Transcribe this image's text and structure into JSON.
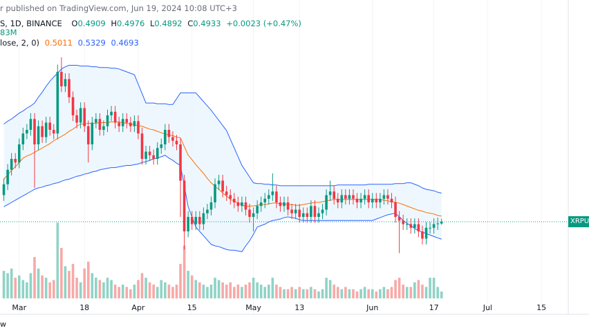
{
  "header": {
    "published": "r published on TradingView.com, Jun 19, 2024 10:08 UTC+3",
    "symbol": "S, 1D, BINANCE",
    "ohlc_labels": [
      "O",
      "H",
      "L",
      "C"
    ],
    "change": "+0.0023 (+0.47%)",
    "volume": "83M",
    "indicator": "lose, 2, 0)",
    "footer": "w"
  },
  "chart_data": {
    "type": "candlestick",
    "symbol_tag": "XRPUS",
    "x": [
      "2024-02-26",
      "2024-02-27",
      "2024-02-28",
      "2024-02-29",
      "2024-03-01",
      "2024-03-02",
      "2024-03-03",
      "2024-03-04",
      "2024-03-05",
      "2024-03-06",
      "2024-03-07",
      "2024-03-08",
      "2024-03-09",
      "2024-03-10",
      "2024-03-11",
      "2024-03-12",
      "2024-03-13",
      "2024-03-14",
      "2024-03-15",
      "2024-03-16",
      "2024-03-17",
      "2024-03-18",
      "2024-03-19",
      "2024-03-20",
      "2024-03-21",
      "2024-03-22",
      "2024-03-23",
      "2024-03-24",
      "2024-03-25",
      "2024-03-26",
      "2024-03-27",
      "2024-03-28",
      "2024-03-29",
      "2024-03-30",
      "2024-03-31",
      "2024-04-01",
      "2024-04-02",
      "2024-04-03",
      "2024-04-04",
      "2024-04-05",
      "2024-04-06",
      "2024-04-07",
      "2024-04-08",
      "2024-04-09",
      "2024-04-10",
      "2024-04-11",
      "2024-04-12",
      "2024-04-13",
      "2024-04-14",
      "2024-04-15",
      "2024-04-16",
      "2024-04-17",
      "2024-04-18",
      "2024-04-19",
      "2024-04-20",
      "2024-04-21",
      "2024-04-22",
      "2024-04-23",
      "2024-04-24",
      "2024-04-25",
      "2024-04-26",
      "2024-04-27",
      "2024-04-28",
      "2024-04-29",
      "2024-04-30",
      "2024-05-01",
      "2024-05-02",
      "2024-05-03",
      "2024-05-04",
      "2024-05-05",
      "2024-05-06",
      "2024-05-07",
      "2024-05-08",
      "2024-05-09",
      "2024-05-10",
      "2024-05-11",
      "2024-05-12",
      "2024-05-13",
      "2024-05-14",
      "2024-05-15",
      "2024-05-16",
      "2024-05-17",
      "2024-05-18",
      "2024-05-19",
      "2024-05-20",
      "2024-05-21",
      "2024-05-22",
      "2024-05-23",
      "2024-05-24",
      "2024-05-25",
      "2024-05-26",
      "2024-05-27",
      "2024-05-28",
      "2024-05-29",
      "2024-05-30",
      "2024-05-31",
      "2024-06-01",
      "2024-06-02",
      "2024-06-03",
      "2024-06-04",
      "2024-06-05",
      "2024-06-06",
      "2024-06-07",
      "2024-06-08",
      "2024-06-09",
      "2024-06-10",
      "2024-06-11",
      "2024-06-12",
      "2024-06-13",
      "2024-06-14",
      "2024-06-15",
      "2024-06-16",
      "2024-06-17",
      "2024-06-18",
      "2024-06-19"
    ],
    "open": [
      0.53,
      0.545,
      0.565,
      0.58,
      0.575,
      0.6,
      0.615,
      0.62,
      0.635,
      0.6,
      0.625,
      0.61,
      0.63,
      0.62,
      0.615,
      0.7,
      0.68,
      0.69,
      0.665,
      0.64,
      0.63,
      0.65,
      0.625,
      0.6,
      0.63,
      0.635,
      0.62,
      0.625,
      0.64,
      0.645,
      0.63,
      0.625,
      0.635,
      0.63,
      0.625,
      0.632,
      0.615,
      0.58,
      0.59,
      0.585,
      0.58,
      0.595,
      0.6,
      0.62,
      0.61,
      0.605,
      0.6,
      0.55,
      0.48,
      0.5,
      0.49,
      0.5,
      0.49,
      0.505,
      0.51,
      0.52,
      0.545,
      0.55,
      0.535,
      0.53,
      0.525,
      0.52,
      0.515,
      0.52,
      0.51,
      0.5,
      0.505,
      0.515,
      0.52,
      0.525,
      0.53,
      0.535,
      0.52,
      0.515,
      0.52,
      0.51,
      0.505,
      0.51,
      0.5,
      0.505,
      0.5,
      0.515,
      0.5,
      0.505,
      0.51,
      0.53,
      0.535,
      0.525,
      0.52,
      0.53,
      0.525,
      0.53,
      0.525,
      0.52,
      0.525,
      0.53,
      0.52,
      0.525,
      0.52,
      0.525,
      0.53,
      0.525,
      0.52,
      0.5,
      0.495,
      0.49,
      0.49,
      0.485,
      0.49,
      0.48,
      0.47,
      0.485,
      0.485,
      0.49,
      0.4909
    ],
    "high": [
      0.553,
      0.573,
      0.588,
      0.588,
      0.608,
      0.623,
      0.628,
      0.643,
      0.643,
      0.633,
      0.633,
      0.638,
      0.638,
      0.628,
      0.71,
      0.72,
      0.698,
      0.698,
      0.673,
      0.648,
      0.658,
      0.658,
      0.633,
      0.638,
      0.643,
      0.643,
      0.633,
      0.648,
      0.653,
      0.653,
      0.638,
      0.643,
      0.643,
      0.638,
      0.64,
      0.64,
      0.623,
      0.598,
      0.598,
      0.593,
      0.603,
      0.608,
      0.628,
      0.628,
      0.618,
      0.613,
      0.608,
      0.558,
      0.508,
      0.508,
      0.508,
      0.508,
      0.513,
      0.518,
      0.528,
      0.553,
      0.558,
      0.558,
      0.543,
      0.538,
      0.533,
      0.528,
      0.528,
      0.528,
      0.518,
      0.513,
      0.523,
      0.528,
      0.533,
      0.538,
      0.56,
      0.543,
      0.528,
      0.528,
      0.528,
      0.518,
      0.518,
      0.518,
      0.513,
      0.513,
      0.523,
      0.523,
      0.513,
      0.518,
      0.538,
      0.55,
      0.543,
      0.533,
      0.538,
      0.538,
      0.538,
      0.538,
      0.533,
      0.533,
      0.538,
      0.538,
      0.533,
      0.533,
      0.533,
      0.538,
      0.538,
      0.533,
      0.528,
      0.508,
      0.503,
      0.498,
      0.498,
      0.498,
      0.498,
      0.488,
      0.493,
      0.493,
      0.498,
      0.499,
      0.4976
    ],
    "low": [
      0.522,
      0.537,
      0.557,
      0.567,
      0.567,
      0.592,
      0.607,
      0.612,
      0.54,
      0.592,
      0.602,
      0.602,
      0.612,
      0.607,
      0.607,
      0.672,
      0.672,
      0.657,
      0.632,
      0.622,
      0.622,
      0.617,
      0.575,
      0.592,
      0.622,
      0.612,
      0.612,
      0.617,
      0.632,
      0.622,
      0.617,
      0.617,
      0.622,
      0.617,
      0.617,
      0.607,
      0.572,
      0.572,
      0.577,
      0.572,
      0.572,
      0.587,
      0.592,
      0.602,
      0.597,
      0.592,
      0.5,
      0.455,
      0.472,
      0.482,
      0.482,
      0.482,
      0.482,
      0.497,
      0.502,
      0.512,
      0.537,
      0.527,
      0.522,
      0.517,
      0.512,
      0.507,
      0.507,
      0.502,
      0.492,
      0.48,
      0.497,
      0.507,
      0.512,
      0.517,
      0.522,
      0.512,
      0.507,
      0.507,
      0.502,
      0.497,
      0.497,
      0.492,
      0.492,
      0.492,
      0.492,
      0.492,
      0.492,
      0.497,
      0.502,
      0.522,
      0.517,
      0.512,
      0.512,
      0.517,
      0.517,
      0.517,
      0.512,
      0.512,
      0.517,
      0.512,
      0.512,
      0.512,
      0.512,
      0.517,
      0.517,
      0.512,
      0.492,
      0.45,
      0.482,
      0.482,
      0.477,
      0.477,
      0.472,
      0.462,
      0.462,
      0.477,
      0.477,
      0.482,
      0.4892
    ],
    "close": [
      0.545,
      0.565,
      0.58,
      0.575,
      0.6,
      0.615,
      0.62,
      0.635,
      0.6,
      0.625,
      0.61,
      0.63,
      0.62,
      0.615,
      0.7,
      0.68,
      0.69,
      0.665,
      0.64,
      0.63,
      0.65,
      0.625,
      0.6,
      0.63,
      0.635,
      0.62,
      0.625,
      0.64,
      0.645,
      0.63,
      0.625,
      0.635,
      0.63,
      0.625,
      0.632,
      0.615,
      0.58,
      0.59,
      0.585,
      0.58,
      0.595,
      0.6,
      0.62,
      0.61,
      0.605,
      0.6,
      0.55,
      0.48,
      0.5,
      0.49,
      0.5,
      0.49,
      0.505,
      0.51,
      0.52,
      0.545,
      0.55,
      0.535,
      0.53,
      0.525,
      0.52,
      0.515,
      0.52,
      0.51,
      0.5,
      0.505,
      0.515,
      0.52,
      0.525,
      0.53,
      0.535,
      0.52,
      0.515,
      0.52,
      0.51,
      0.505,
      0.51,
      0.5,
      0.505,
      0.5,
      0.515,
      0.5,
      0.505,
      0.51,
      0.53,
      0.535,
      0.525,
      0.52,
      0.53,
      0.525,
      0.53,
      0.525,
      0.52,
      0.525,
      0.53,
      0.52,
      0.525,
      0.52,
      0.525,
      0.53,
      0.525,
      0.52,
      0.5,
      0.495,
      0.49,
      0.49,
      0.485,
      0.49,
      0.48,
      0.47,
      0.485,
      0.485,
      0.49,
      0.491,
      0.4933
    ],
    "volume": [
      120,
      110,
      130,
      90,
      100,
      80,
      70,
      110,
      180,
      130,
      100,
      90,
      70,
      80,
      330,
      220,
      140,
      120,
      150,
      90,
      70,
      130,
      160,
      110,
      90,
      80,
      70,
      90,
      80,
      60,
      50,
      60,
      50,
      40,
      60,
      80,
      110,
      90,
      70,
      60,
      50,
      80,
      70,
      60,
      50,
      60,
      150,
      230,
      120,
      100,
      80,
      70,
      60,
      50,
      60,
      90,
      80,
      70,
      60,
      70,
      50,
      60,
      50,
      60,
      70,
      90,
      70,
      60,
      50,
      60,
      90,
      60,
      50,
      40,
      40,
      50,
      40,
      50,
      40,
      40,
      50,
      40,
      30,
      40,
      90,
      80,
      60,
      50,
      40,
      50,
      40,
      40,
      30,
      40,
      50,
      40,
      40,
      30,
      40,
      50,
      40,
      50,
      80,
      90,
      60,
      50,
      50,
      70,
      80,
      60,
      50,
      90,
      90,
      50,
      30
    ],
    "basis": [
      0.552,
      0.558,
      0.564,
      0.569,
      0.575,
      0.581,
      0.584,
      0.586,
      0.589,
      0.592,
      0.595,
      0.598,
      0.601,
      0.605,
      0.608,
      0.611,
      0.614,
      0.618,
      0.621,
      0.625,
      0.628,
      0.628,
      0.629,
      0.629,
      0.629,
      0.63,
      0.63,
      0.63,
      0.631,
      0.631,
      0.631,
      0.63,
      0.629,
      0.628,
      0.627,
      0.626,
      0.625,
      0.623,
      0.621,
      0.62,
      0.618,
      0.616,
      0.614,
      0.613,
      0.612,
      0.61,
      0.609,
      0.597,
      0.585,
      0.579,
      0.572,
      0.566,
      0.56,
      0.553,
      0.547,
      0.542,
      0.538,
      0.533,
      0.529,
      0.524,
      0.522,
      0.519,
      0.517,
      0.514,
      0.515,
      0.515,
      0.516,
      0.517,
      0.517,
      0.518,
      0.519,
      0.519,
      0.518,
      0.518,
      0.517,
      0.517,
      0.516,
      0.516,
      0.517,
      0.518,
      0.519,
      0.52,
      0.52,
      0.521,
      0.522,
      0.523,
      0.524,
      0.524,
      0.524,
      0.524,
      0.524,
      0.524,
      0.524,
      0.524,
      0.524,
      0.524,
      0.524,
      0.524,
      0.524,
      0.523,
      0.522,
      0.521,
      0.52,
      0.519,
      0.517,
      0.515,
      0.513,
      0.511,
      0.509,
      0.508,
      0.506,
      0.505,
      0.504,
      0.502,
      0.5011
    ],
    "upper": [
      0.628,
      0.632,
      0.635,
      0.639,
      0.643,
      0.646,
      0.65,
      0.653,
      0.657,
      0.665,
      0.672,
      0.68,
      0.687,
      0.693,
      0.698,
      0.704,
      0.707,
      0.709,
      0.709,
      0.709,
      0.708,
      0.708,
      0.708,
      0.707,
      0.707,
      0.706,
      0.706,
      0.706,
      0.705,
      0.705,
      0.704,
      0.702,
      0.7,
      0.698,
      0.696,
      0.683,
      0.67,
      0.657,
      0.657,
      0.657,
      0.656,
      0.656,
      0.656,
      0.655,
      0.655,
      0.663,
      0.671,
      0.671,
      0.671,
      0.671,
      0.671,
      0.665,
      0.659,
      0.653,
      0.647,
      0.64,
      0.633,
      0.626,
      0.619,
      0.607,
      0.595,
      0.583,
      0.571,
      0.563,
      0.555,
      0.547,
      0.546,
      0.546,
      0.545,
      0.545,
      0.544,
      0.544,
      0.543,
      0.543,
      0.543,
      0.543,
      0.543,
      0.543,
      0.543,
      0.543,
      0.543,
      0.543,
      0.543,
      0.543,
      0.543,
      0.543,
      0.543,
      0.544,
      0.544,
      0.544,
      0.544,
      0.544,
      0.544,
      0.544,
      0.544,
      0.545,
      0.545,
      0.545,
      0.545,
      0.545,
      0.545,
      0.545,
      0.546,
      0.546,
      0.546,
      0.547,
      0.547,
      0.545,
      0.543,
      0.54,
      0.538,
      0.537,
      0.536,
      0.534,
      0.5329
    ],
    "lower": [
      0.514,
      0.517,
      0.52,
      0.523,
      0.526,
      0.529,
      0.532,
      0.535,
      0.538,
      0.54,
      0.541,
      0.543,
      0.544,
      0.546,
      0.547,
      0.549,
      0.551,
      0.552,
      0.554,
      0.556,
      0.557,
      0.559,
      0.56,
      0.562,
      0.563,
      0.565,
      0.566,
      0.567,
      0.568,
      0.568,
      0.569,
      0.57,
      0.571,
      0.571,
      0.572,
      0.573,
      0.575,
      0.576,
      0.578,
      0.58,
      0.581,
      0.583,
      0.585,
      0.581,
      0.578,
      0.574,
      0.571,
      0.543,
      0.514,
      0.5,
      0.486,
      0.48,
      0.474,
      0.468,
      0.462,
      0.46,
      0.459,
      0.457,
      0.455,
      0.454,
      0.454,
      0.453,
      0.452,
      0.46,
      0.467,
      0.476,
      0.486,
      0.488,
      0.49,
      0.493,
      0.495,
      0.496,
      0.497,
      0.499,
      0.5,
      0.499,
      0.498,
      0.496,
      0.495,
      0.495,
      0.495,
      0.495,
      0.495,
      0.495,
      0.495,
      0.495,
      0.495,
      0.495,
      0.495,
      0.495,
      0.495,
      0.495,
      0.495,
      0.495,
      0.495,
      0.495,
      0.495,
      0.497,
      0.499,
      0.501,
      0.503,
      0.504,
      0.505,
      0.5,
      0.495,
      0.491,
      0.488,
      0.484,
      0.481,
      0.479,
      0.477,
      0.475,
      0.473,
      0.471,
      0.4693
    ],
    "up_color": "#089981",
    "down_color": "#f23645",
    "volume_up_color": "#8fd3c6",
    "volume_down_color": "#f7a9a7",
    "basis_color": "#ff6d00",
    "band_color": "#2962ff",
    "band_fill": "#e3f2fd",
    "xlim": [
      "2024-02-25",
      "2024-07-22"
    ],
    "xticks": [
      {
        "value": "2024-03-01",
        "label": "Mar"
      },
      {
        "value": "2024-03-18",
        "label": "18"
      },
      {
        "value": "2024-04-01",
        "label": "Apr"
      },
      {
        "value": "2024-04-15",
        "label": "15"
      },
      {
        "value": "2024-05-01",
        "label": "May"
      },
      {
        "value": "2024-05-13",
        "label": "13"
      },
      {
        "value": "2024-06-01",
        "label": "Jun"
      },
      {
        "value": "2024-06-17",
        "label": "17"
      },
      {
        "value": "2024-07-01",
        "label": "Jul"
      },
      {
        "value": "2024-07-15",
        "label": "15"
      }
    ],
    "ylim": [
      0.38,
      0.78
    ],
    "volume_ylim": [
      0,
      1300
    ],
    "grid": true
  }
}
